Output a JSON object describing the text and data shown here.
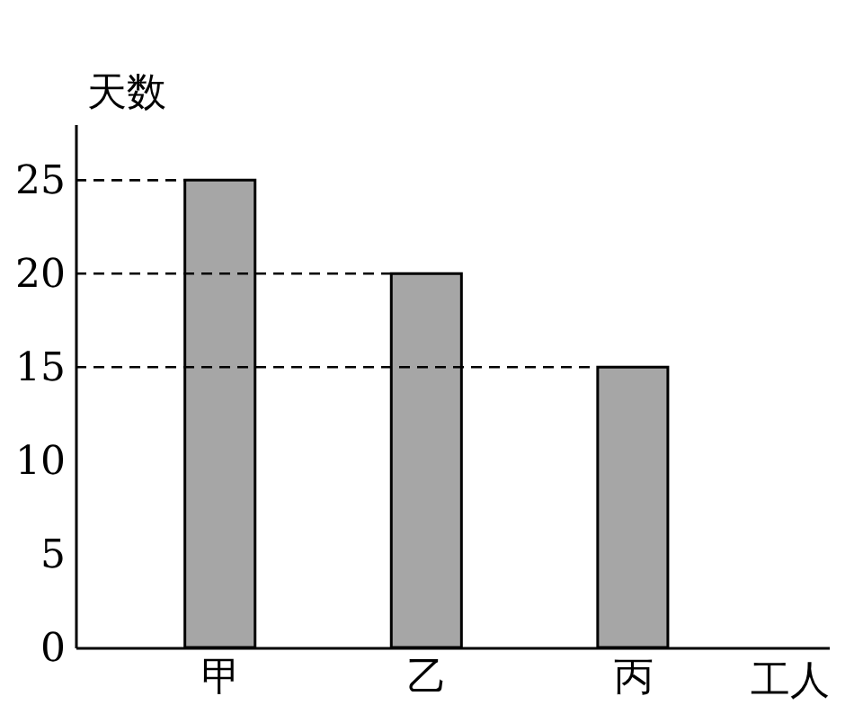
{
  "chart_data": {
    "type": "bar",
    "categories": [
      "甲",
      "乙",
      "丙"
    ],
    "values": [
      25,
      20,
      15
    ],
    "color": "#a6a6a6",
    "xlabel": "工人",
    "ylabel": "天数",
    "ylim": [
      0,
      28
    ],
    "yticks": [
      0,
      5,
      10,
      15,
      20,
      25
    ],
    "grid": false,
    "ref_lines": [
      {
        "axis": "y",
        "value": 25,
        "color": "#000000",
        "line_style": "dashed"
      },
      {
        "axis": "y",
        "value": 20,
        "color": "#000000",
        "line_style": "dashed"
      },
      {
        "axis": "y",
        "value": 15,
        "color": "#000000",
        "line_style": "dashed"
      }
    ]
  }
}
